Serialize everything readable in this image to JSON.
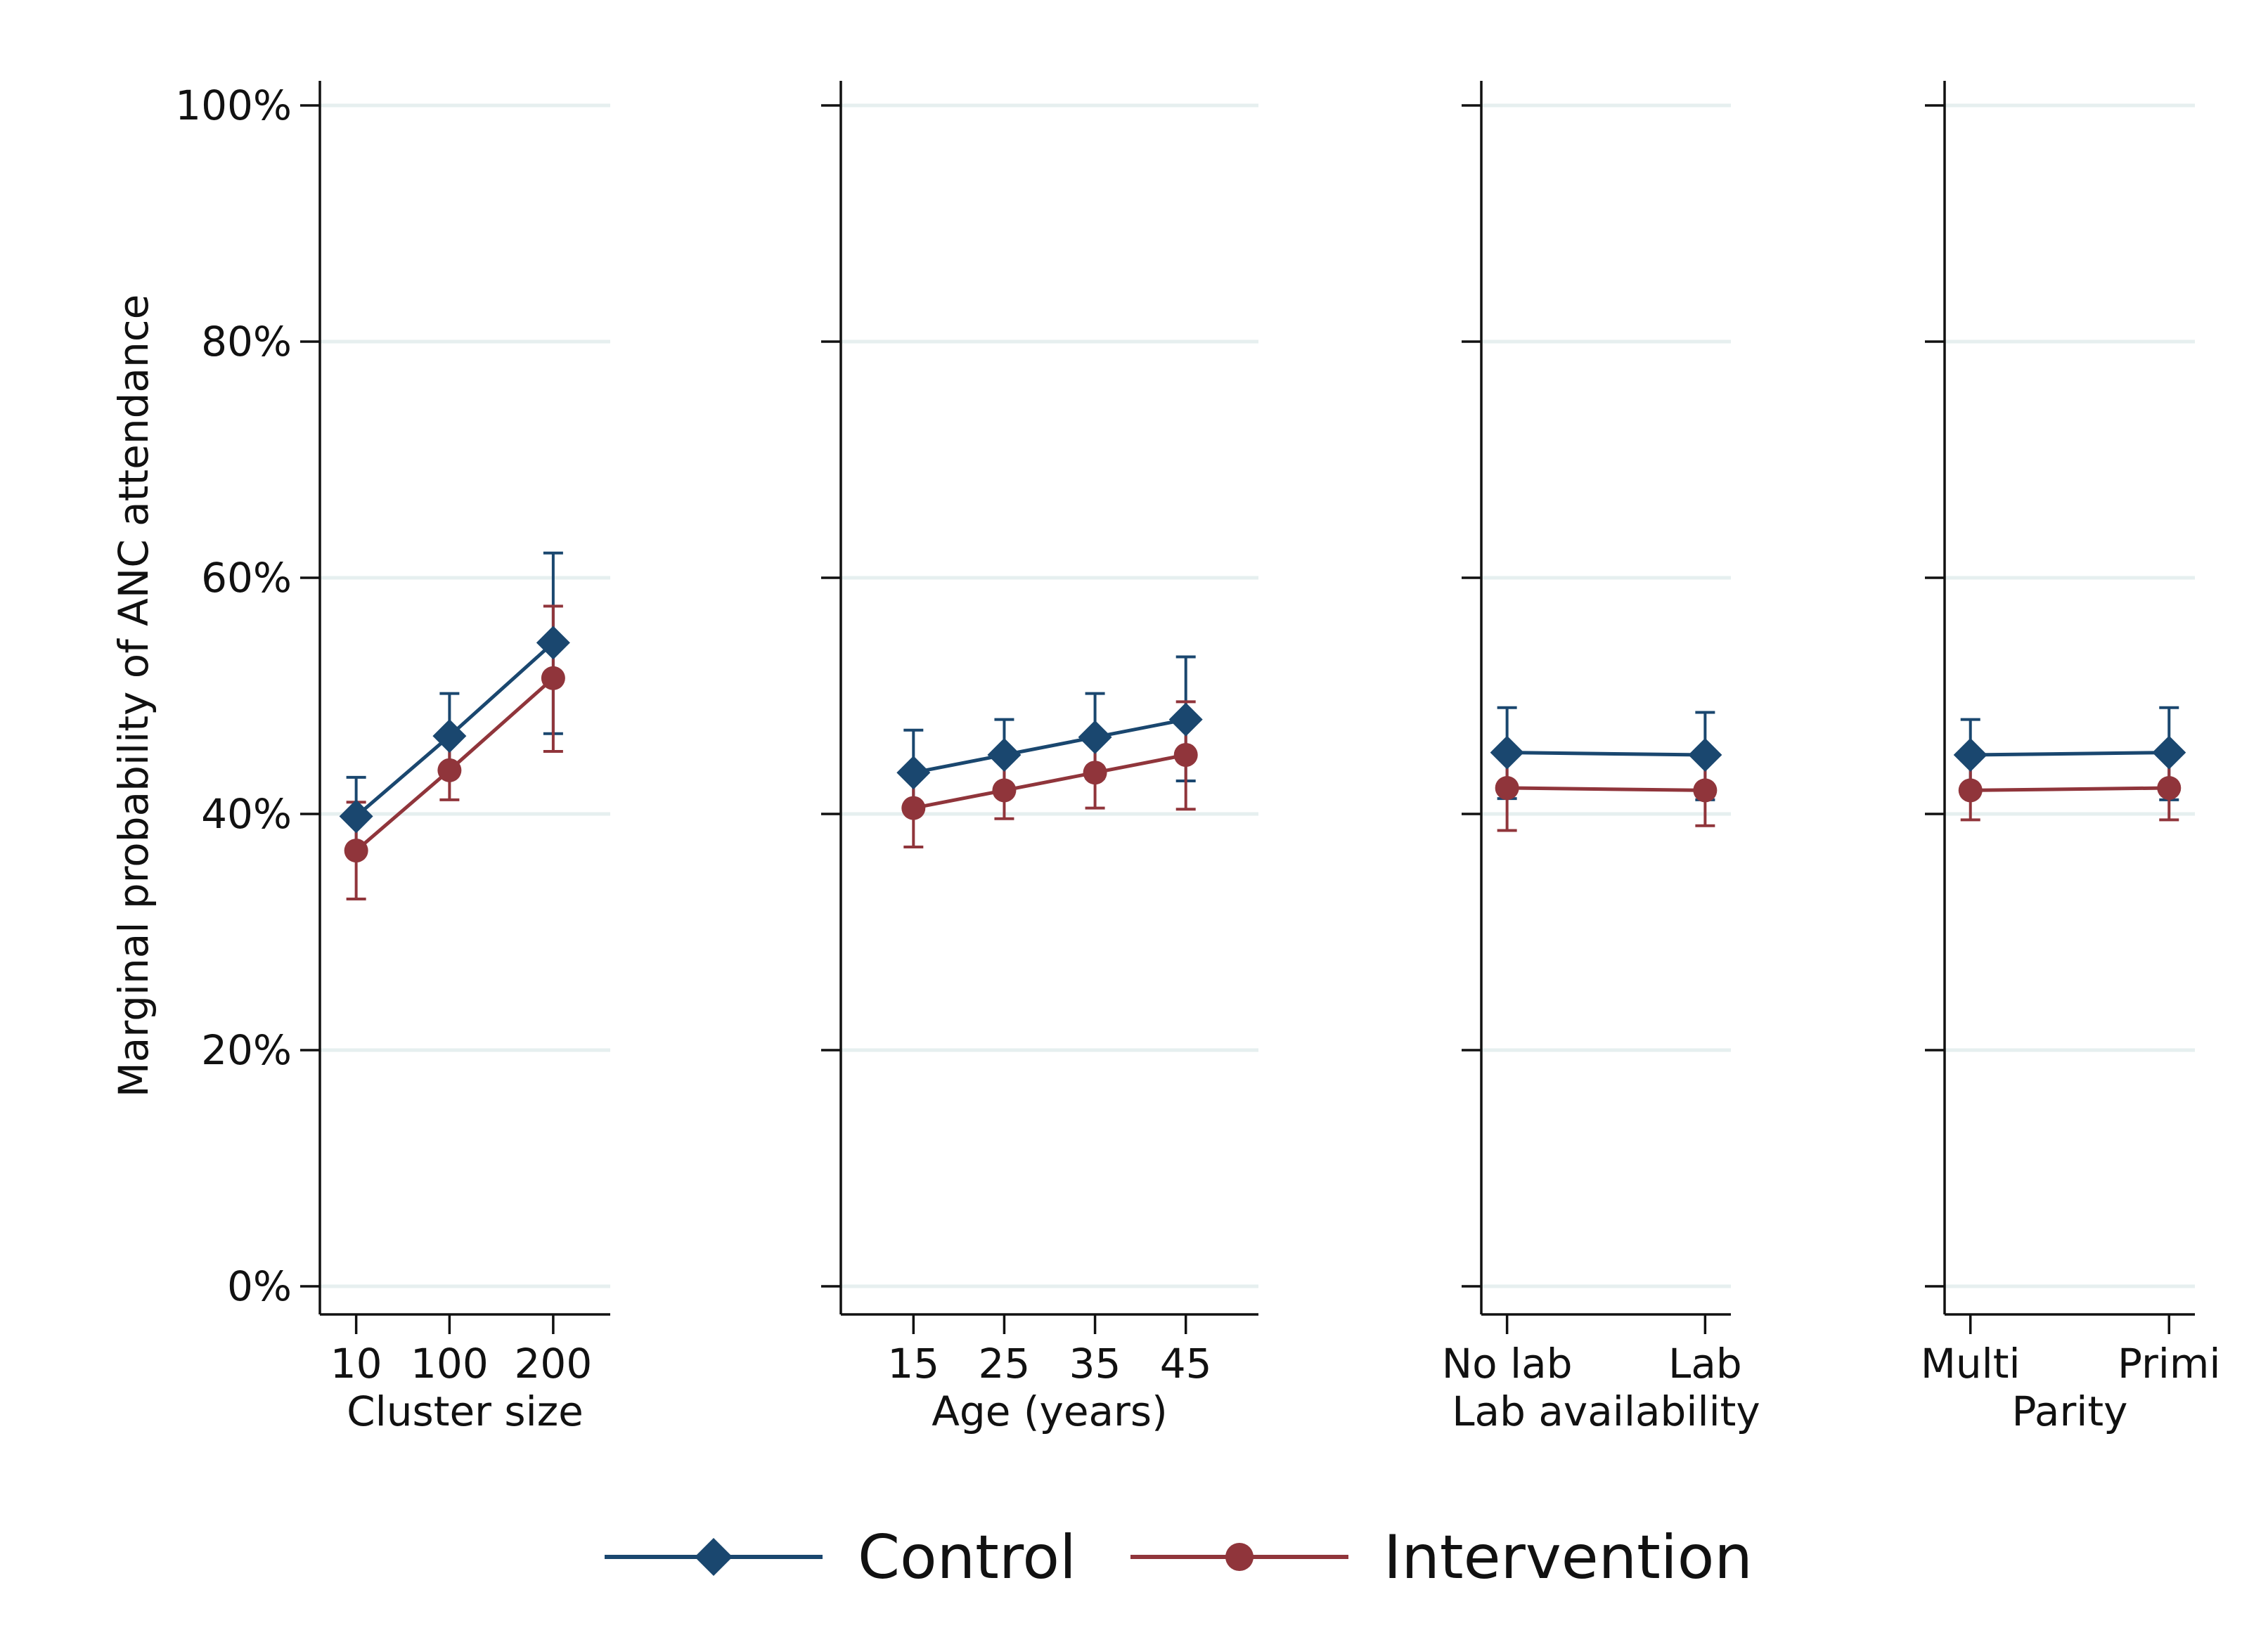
{
  "chart_data": {
    "type": "line",
    "ylabel": "Marginal probability of ANC attendance",
    "ylim": [
      0,
      1
    ],
    "yticks": [
      {
        "value": 0,
        "label": "0%"
      },
      {
        "value": 0.2,
        "label": "20%"
      },
      {
        "value": 0.4,
        "label": "40%"
      },
      {
        "value": 0.6,
        "label": "60%"
      },
      {
        "value": 0.8,
        "label": "80%"
      },
      {
        "value": 1.0,
        "label": "100%"
      }
    ],
    "grid": true,
    "legend_position": "bottom",
    "series_styles": [
      {
        "name": "Control",
        "color": "#1a476f",
        "marker": "diamond"
      },
      {
        "name": "Intervention",
        "color": "#90353b",
        "marker": "circle"
      }
    ],
    "panels": [
      {
        "xlabel": "Cluster size",
        "categories": [
          "10",
          "100",
          "200"
        ],
        "x": [
          10,
          100,
          200
        ],
        "xlim": [
          -25,
          255
        ],
        "series": [
          {
            "name": "Control",
            "values": [
              0.398,
              0.466,
              0.545
            ],
            "ci_low": [
              0.366,
              0.434,
              0.468
            ],
            "ci_high": [
              0.431,
              0.502,
              0.621
            ]
          },
          {
            "name": "Intervention",
            "values": [
              0.369,
              0.437,
              0.515
            ],
            "ci_low": [
              0.328,
              0.412,
              0.453
            ],
            "ci_high": [
              0.41,
              0.462,
              0.576
            ]
          }
        ]
      },
      {
        "xlabel": "Age (years)",
        "categories": [
          "15",
          "25",
          "35",
          "45"
        ],
        "x": [
          15,
          25,
          35,
          45
        ],
        "xlim": [
          7,
          53
        ],
        "series": [
          {
            "name": "Control",
            "values": [
              0.435,
              0.45,
              0.465,
              0.48
            ],
            "ci_low": [
              0.401,
              0.421,
              0.43,
              0.428
            ],
            "ci_high": [
              0.471,
              0.48,
              0.502,
              0.533
            ]
          },
          {
            "name": "Intervention",
            "values": [
              0.405,
              0.42,
              0.435,
              0.45
            ],
            "ci_low": [
              0.372,
              0.396,
              0.405,
              0.404
            ],
            "ci_high": [
              0.437,
              0.445,
              0.466,
              0.495
            ]
          }
        ]
      },
      {
        "xlabel": "Lab availability",
        "categories": [
          "No lab",
          "Lab"
        ],
        "x": [
          0,
          1
        ],
        "xlim": [
          -0.13,
          1.13
        ],
        "series": [
          {
            "name": "Control",
            "values": [
              0.452,
              0.45
            ],
            "ci_low": [
              0.413,
              0.412
            ],
            "ci_high": [
              0.49,
              0.486
            ]
          },
          {
            "name": "Intervention",
            "values": [
              0.422,
              0.42
            ],
            "ci_low": [
              0.386,
              0.39
            ],
            "ci_high": [
              0.453,
              0.45
            ]
          }
        ]
      },
      {
        "xlabel": "Parity",
        "categories": [
          "Multi",
          "Primi"
        ],
        "x": [
          0,
          1
        ],
        "xlim": [
          -0.13,
          1.13
        ],
        "series": [
          {
            "name": "Control",
            "values": [
              0.45,
              0.452
            ],
            "ci_low": [
              0.42,
              0.412
            ],
            "ci_high": [
              0.48,
              0.49
            ]
          },
          {
            "name": "Intervention",
            "values": [
              0.42,
              0.422
            ],
            "ci_low": [
              0.395,
              0.395
            ],
            "ci_high": [
              0.445,
              0.45
            ]
          }
        ]
      }
    ]
  }
}
